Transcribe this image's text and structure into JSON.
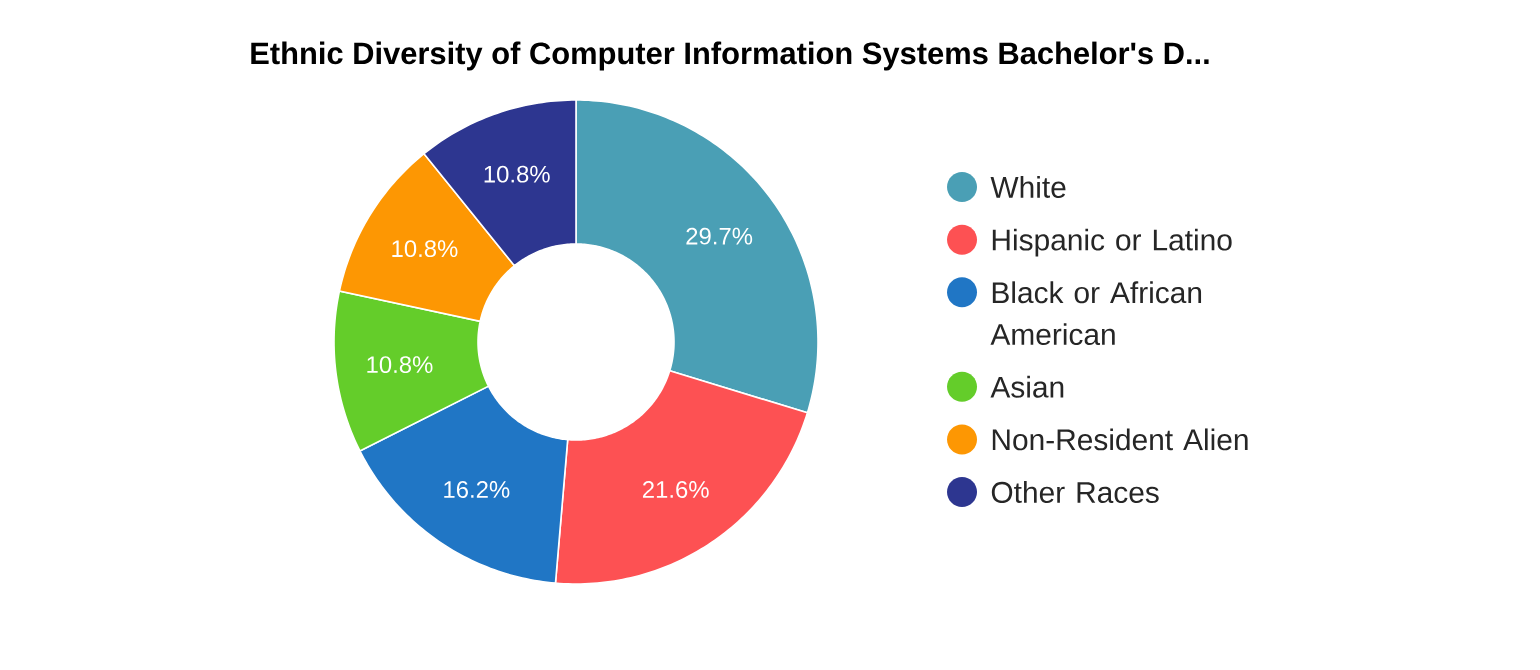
{
  "chart_data": {
    "type": "donut",
    "title": "Ethnic Diversity of Computer Information Systems Bachelor's D...",
    "categories": [
      "White",
      "Hispanic or Latino",
      "Black or African American",
      "Asian",
      "Non-Resident Alien",
      "Other Races"
    ],
    "values": [
      29.7,
      21.6,
      16.2,
      10.8,
      10.8,
      10.8
    ],
    "value_labels": [
      "29.7%",
      "21.6%",
      "16.2%",
      "10.8%",
      "10.8%",
      "10.8%"
    ],
    "colors": [
      "#4a9fb5",
      "#fd5153",
      "#2076c5",
      "#64cd2a",
      "#fd9703",
      "#2d3690"
    ],
    "legend": "right"
  }
}
